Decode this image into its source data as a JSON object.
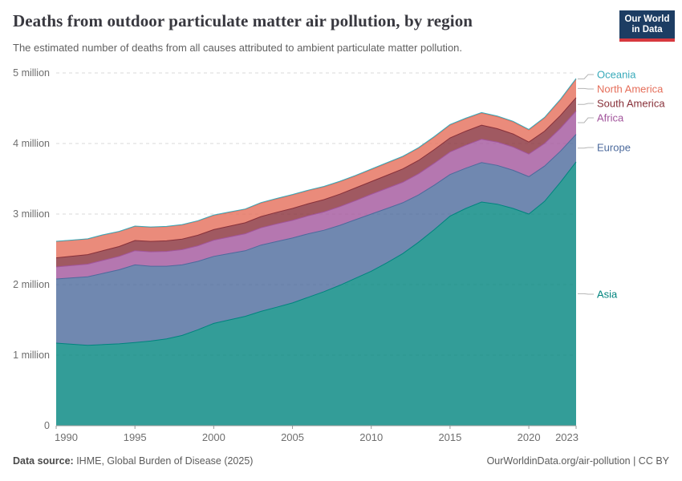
{
  "header": {
    "title": "Deaths from outdoor particulate matter air pollution, by region",
    "subtitle": "The estimated number of deaths from all causes attributed to ambient particulate matter pollution.",
    "logo": {
      "line1": "Our World",
      "line2": "in Data",
      "bg_color": "#1d3d63",
      "accent_color": "#d7383e"
    }
  },
  "footer": {
    "source_label": "Data source:",
    "source_text": " IHME, Global Burden of Disease (2025)",
    "credit": "OurWorldinData.org/air-pollution | CC BY"
  },
  "chart_data": {
    "type": "area",
    "stacked": true,
    "title": "Deaths from outdoor particulate matter air pollution, by region",
    "unit": "million deaths",
    "xlabel": "",
    "ylabel": "",
    "ylim": [
      0,
      5
    ],
    "grid": "horizontal-dashed",
    "legend_position": "right",
    "x": [
      1990,
      1991,
      1992,
      1993,
      1994,
      1995,
      1996,
      1997,
      1998,
      1999,
      2000,
      2001,
      2002,
      2003,
      2004,
      2005,
      2006,
      2007,
      2008,
      2009,
      2010,
      2011,
      2012,
      2013,
      2014,
      2015,
      2016,
      2017,
      2018,
      2019,
      2020,
      2021,
      2022,
      2023
    ],
    "x_ticks": [
      1990,
      1995,
      2000,
      2005,
      2010,
      2015,
      2020,
      2023
    ],
    "y_ticks": [
      {
        "v": 0,
        "label": "0"
      },
      {
        "v": 1,
        "label": "1 million"
      },
      {
        "v": 2,
        "label": "2 million"
      },
      {
        "v": 3,
        "label": "3 million"
      },
      {
        "v": 4,
        "label": "4 million"
      },
      {
        "v": 5,
        "label": "5 million"
      }
    ],
    "series": [
      {
        "name": "Asia",
        "color": "#00847E",
        "values": [
          1.17,
          1.155,
          1.14,
          1.15,
          1.16,
          1.18,
          1.2,
          1.23,
          1.28,
          1.36,
          1.45,
          1.5,
          1.55,
          1.62,
          1.68,
          1.74,
          1.82,
          1.9,
          1.99,
          2.09,
          2.19,
          2.31,
          2.44,
          2.6,
          2.78,
          2.97,
          3.08,
          3.17,
          3.14,
          3.08,
          3.0,
          3.18,
          3.45,
          3.74
        ]
      },
      {
        "name": "Europe",
        "color": "#4C6A9C",
        "values": [
          0.91,
          0.94,
          0.97,
          1.01,
          1.05,
          1.1,
          1.06,
          1.03,
          1.0,
          0.97,
          0.95,
          0.94,
          0.93,
          0.94,
          0.93,
          0.92,
          0.9,
          0.87,
          0.85,
          0.83,
          0.81,
          0.77,
          0.72,
          0.67,
          0.63,
          0.59,
          0.57,
          0.56,
          0.55,
          0.54,
          0.53,
          0.5,
          0.44,
          0.39
        ]
      },
      {
        "name": "Africa",
        "color": "#A2559C",
        "values": [
          0.17,
          0.175,
          0.18,
          0.185,
          0.19,
          0.2,
          0.205,
          0.21,
          0.215,
          0.22,
          0.23,
          0.235,
          0.24,
          0.245,
          0.25,
          0.25,
          0.255,
          0.26,
          0.265,
          0.27,
          0.28,
          0.285,
          0.29,
          0.3,
          0.31,
          0.32,
          0.325,
          0.33,
          0.33,
          0.33,
          0.32,
          0.32,
          0.325,
          0.33
        ]
      },
      {
        "name": "South America",
        "color": "#883039",
        "values": [
          0.13,
          0.132,
          0.135,
          0.138,
          0.14,
          0.145,
          0.147,
          0.15,
          0.15,
          0.15,
          0.15,
          0.153,
          0.156,
          0.16,
          0.165,
          0.17,
          0.172,
          0.175,
          0.177,
          0.18,
          0.18,
          0.185,
          0.19,
          0.19,
          0.195,
          0.2,
          0.2,
          0.2,
          0.19,
          0.185,
          0.17,
          0.175,
          0.18,
          0.19
        ]
      },
      {
        "name": "North America",
        "color": "#E56E5A",
        "values": [
          0.23,
          0.225,
          0.22,
          0.22,
          0.21,
          0.2,
          0.2,
          0.2,
          0.2,
          0.2,
          0.2,
          0.195,
          0.19,
          0.19,
          0.19,
          0.19,
          0.185,
          0.18,
          0.175,
          0.17,
          0.17,
          0.17,
          0.17,
          0.172,
          0.175,
          0.18,
          0.175,
          0.17,
          0.17,
          0.17,
          0.17,
          0.185,
          0.22,
          0.26
        ]
      },
      {
        "name": "Oceania",
        "color": "#38AABA",
        "values": [
          0.004,
          0.004,
          0.004,
          0.005,
          0.005,
          0.005,
          0.005,
          0.005,
          0.006,
          0.006,
          0.006,
          0.006,
          0.006,
          0.007,
          0.007,
          0.007,
          0.007,
          0.007,
          0.008,
          0.008,
          0.008,
          0.008,
          0.008,
          0.009,
          0.009,
          0.009,
          0.009,
          0.009,
          0.01,
          0.01,
          0.01,
          0.01,
          0.011,
          0.012
        ]
      }
    ],
    "legend": {
      "items": [
        "Oceania",
        "North America",
        "South America",
        "Africa",
        "Europe",
        "Asia"
      ]
    }
  }
}
